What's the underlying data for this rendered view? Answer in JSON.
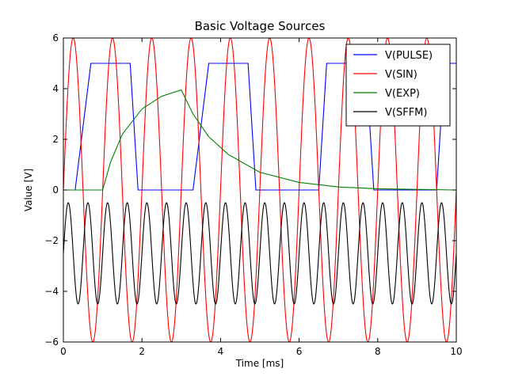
{
  "chart_data": {
    "type": "line",
    "title": "Basic Voltage Sources",
    "xlabel": "Time [ms]",
    "ylabel": "Value [V]",
    "xlim": [
      0,
      10
    ],
    "ylim": [
      -6,
      6
    ],
    "xticks": [
      "0",
      "2",
      "4",
      "6",
      "8",
      "10"
    ],
    "yticks": [
      "6",
      "4",
      "2",
      "0",
      "−2",
      "−4",
      "−6"
    ],
    "grid": false,
    "legend_position": "top-right",
    "series": [
      {
        "name": "V(PULSE)",
        "color": "#0000ff",
        "x": [
          0,
          0.3,
          0.7,
          1.7,
          1.9,
          3.3,
          3.7,
          4.7,
          4.9,
          6.5,
          6.7,
          7.7,
          7.9,
          9.5,
          9.7,
          10
        ],
        "y": [
          0,
          0,
          5,
          5,
          0,
          0,
          5,
          5,
          0,
          0,
          5,
          5,
          0,
          0,
          5,
          5
        ]
      },
      {
        "name": "V(SIN)",
        "color": "#ff0000",
        "function": "sine",
        "amplitude": 6,
        "offset": 0,
        "frequency_per_ms": 1.0
      },
      {
        "name": "V(EXP)",
        "color": "#008000",
        "x": [
          0,
          1.0,
          1.2,
          1.5,
          2.0,
          2.5,
          3.0,
          3.3,
          3.7,
          4.2,
          5.0,
          6.0,
          7.0,
          8.0,
          10.0
        ],
        "y": [
          0,
          0,
          1.1,
          2.2,
          3.2,
          3.7,
          3.95,
          3.0,
          2.1,
          1.4,
          0.7,
          0.3,
          0.12,
          0.05,
          0.0
        ]
      },
      {
        "name": "V(SFFM)",
        "color": "#000000",
        "function": "sine",
        "amplitude": 2,
        "offset": -2.5,
        "frequency_per_ms": 2.0
      }
    ]
  }
}
